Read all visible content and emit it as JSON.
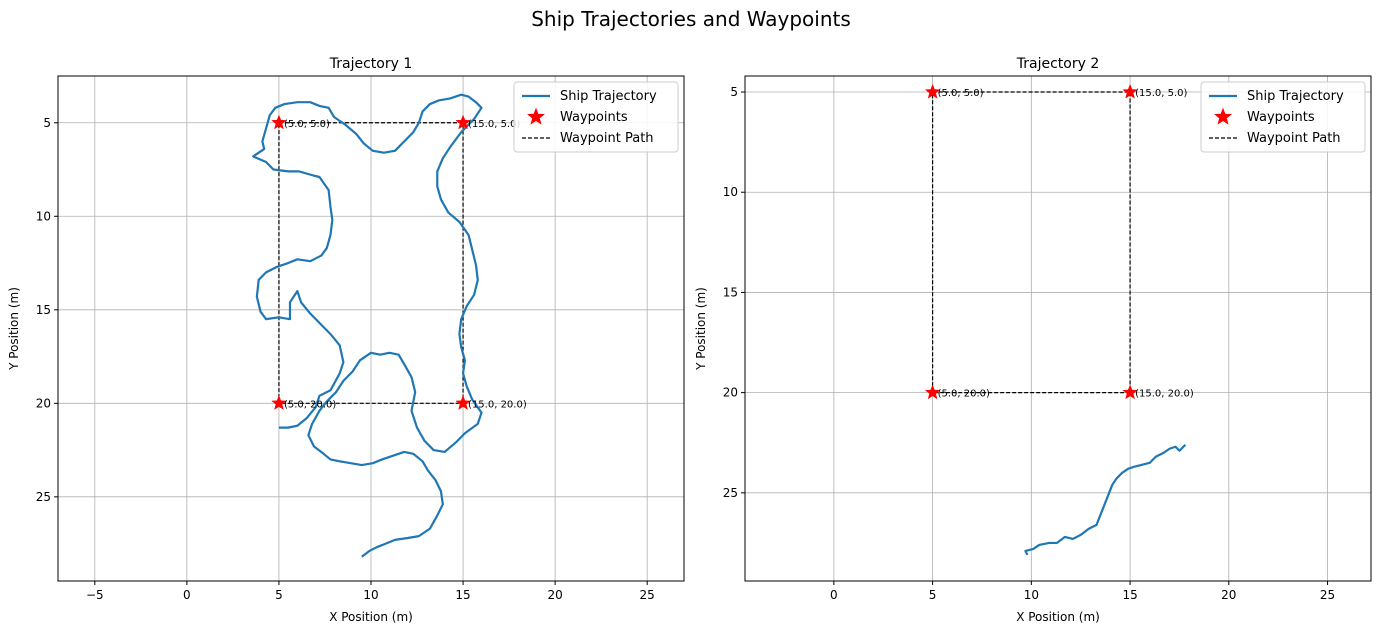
{
  "figure": {
    "suptitle": "Ship Trajectories and Waypoints"
  },
  "chart_data": [
    {
      "type": "line",
      "title": "Trajectory 1",
      "xlabel": "X Position (m)",
      "ylabel": "Y Position (m)",
      "xlim": [
        -7,
        27
      ],
      "ylim": [
        29.5,
        2.5
      ],
      "y_inverted": true,
      "xticks": [
        -5,
        0,
        5,
        10,
        15,
        20,
        25
      ],
      "yticks": [
        5,
        10,
        15,
        20,
        25
      ],
      "grid": true,
      "legend_position": "top-right",
      "legend": [
        "Ship Trajectory",
        "Waypoints",
        "Waypoint Path"
      ],
      "colors": {
        "trajectory": "#1f77b4",
        "waypoint": "#ff0000",
        "path": "#000000"
      },
      "waypoints": [
        {
          "x": 5,
          "y": 5,
          "label": "(5.0, 5.0)"
        },
        {
          "x": 15,
          "y": 5,
          "label": "(15.0, 5.0)"
        },
        {
          "x": 15,
          "y": 20,
          "label": "(15.0, 20.0)"
        },
        {
          "x": 5,
          "y": 20,
          "label": "(5.0, 20.0)"
        }
      ],
      "waypoint_path": [
        [
          5,
          5
        ],
        [
          15,
          5
        ],
        [
          15,
          20
        ],
        [
          5,
          20
        ],
        [
          5,
          5
        ]
      ],
      "trajectory": [
        [
          5.0,
          21.3
        ],
        [
          5.5,
          21.3
        ],
        [
          6.0,
          21.2
        ],
        [
          6.5,
          20.8
        ],
        [
          7.0,
          20.2
        ],
        [
          7.2,
          19.6
        ],
        [
          7.8,
          19.3
        ],
        [
          8.3,
          18.4
        ],
        [
          8.5,
          17.8
        ],
        [
          8.3,
          16.9
        ],
        [
          7.8,
          16.3
        ],
        [
          7.2,
          15.7
        ],
        [
          6.7,
          15.2
        ],
        [
          6.2,
          14.6
        ],
        [
          6.0,
          14.0
        ],
        [
          5.6,
          14.6
        ],
        [
          5.6,
          15.5
        ],
        [
          5.0,
          15.4
        ],
        [
          4.3,
          15.5
        ],
        [
          4.0,
          15.1
        ],
        [
          3.8,
          14.3
        ],
        [
          3.9,
          13.4
        ],
        [
          4.3,
          13.0
        ],
        [
          4.9,
          12.7
        ],
        [
          5.5,
          12.5
        ],
        [
          6.0,
          12.3
        ],
        [
          6.7,
          12.4
        ],
        [
          7.3,
          12.1
        ],
        [
          7.6,
          11.7
        ],
        [
          7.8,
          11.0
        ],
        [
          7.9,
          10.2
        ],
        [
          7.8,
          9.5
        ],
        [
          7.7,
          8.6
        ],
        [
          7.2,
          7.9
        ],
        [
          6.8,
          7.8
        ],
        [
          6.1,
          7.6
        ],
        [
          5.5,
          7.6
        ],
        [
          4.7,
          7.5
        ],
        [
          4.3,
          7.1
        ],
        [
          3.6,
          6.8
        ],
        [
          4.2,
          6.4
        ],
        [
          4.1,
          6.0
        ],
        [
          4.3,
          5.3
        ],
        [
          4.5,
          4.6
        ],
        [
          4.8,
          4.2
        ],
        [
          5.3,
          4.0
        ],
        [
          6.0,
          3.9
        ],
        [
          6.7,
          3.9
        ],
        [
          7.2,
          4.1
        ],
        [
          7.7,
          4.2
        ],
        [
          8.0,
          4.7
        ],
        [
          8.6,
          5.1
        ],
        [
          9.2,
          5.6
        ],
        [
          9.6,
          6.1
        ],
        [
          10.1,
          6.5
        ],
        [
          10.7,
          6.6
        ],
        [
          11.3,
          6.5
        ],
        [
          11.8,
          6.0
        ],
        [
          12.3,
          5.5
        ],
        [
          12.6,
          5.0
        ],
        [
          12.8,
          4.4
        ],
        [
          13.2,
          4.0
        ],
        [
          13.7,
          3.8
        ],
        [
          14.3,
          3.7
        ],
        [
          14.9,
          3.5
        ],
        [
          15.3,
          3.6
        ],
        [
          15.7,
          3.9
        ],
        [
          16.0,
          4.2
        ],
        [
          15.6,
          4.8
        ],
        [
          14.9,
          5.5
        ],
        [
          14.3,
          6.3
        ],
        [
          13.9,
          6.9
        ],
        [
          13.6,
          7.6
        ],
        [
          13.6,
          8.4
        ],
        [
          13.8,
          9.1
        ],
        [
          14.2,
          9.8
        ],
        [
          14.8,
          10.3
        ],
        [
          15.3,
          11.0
        ],
        [
          15.5,
          11.8
        ],
        [
          15.7,
          12.6
        ],
        [
          15.8,
          13.4
        ],
        [
          15.6,
          14.2
        ],
        [
          15.2,
          14.8
        ],
        [
          14.9,
          15.5
        ],
        [
          14.8,
          16.3
        ],
        [
          14.9,
          17.0
        ],
        [
          15.1,
          17.7
        ],
        [
          15.0,
          18.4
        ],
        [
          15.2,
          19.1
        ],
        [
          15.5,
          19.8
        ],
        [
          16.0,
          20.5
        ],
        [
          15.8,
          21.1
        ],
        [
          15.1,
          21.6
        ],
        [
          14.6,
          22.1
        ],
        [
          14.0,
          22.6
        ],
        [
          13.4,
          22.5
        ],
        [
          12.9,
          22.0
        ],
        [
          12.5,
          21.3
        ],
        [
          12.2,
          20.4
        ],
        [
          12.4,
          19.4
        ],
        [
          12.2,
          18.6
        ],
        [
          11.8,
          17.9
        ],
        [
          11.5,
          17.4
        ],
        [
          11.0,
          17.3
        ],
        [
          10.5,
          17.4
        ],
        [
          10.0,
          17.3
        ],
        [
          9.4,
          17.7
        ],
        [
          9.0,
          18.3
        ],
        [
          8.5,
          18.8
        ],
        [
          8.1,
          19.4
        ],
        [
          7.6,
          19.9
        ],
        [
          7.2,
          20.4
        ],
        [
          6.8,
          21.1
        ],
        [
          6.6,
          21.7
        ],
        [
          6.9,
          22.3
        ],
        [
          7.3,
          22.6
        ],
        [
          7.8,
          23.0
        ],
        [
          8.3,
          23.1
        ],
        [
          8.9,
          23.2
        ],
        [
          9.5,
          23.3
        ],
        [
          10.1,
          23.2
        ],
        [
          10.6,
          23.0
        ],
        [
          11.2,
          22.8
        ],
        [
          11.8,
          22.6
        ],
        [
          12.3,
          22.7
        ],
        [
          12.8,
          23.1
        ],
        [
          13.1,
          23.6
        ],
        [
          13.5,
          24.1
        ],
        [
          13.8,
          24.7
        ],
        [
          13.9,
          25.4
        ],
        [
          13.6,
          26.0
        ],
        [
          13.2,
          26.7
        ],
        [
          12.6,
          27.1
        ],
        [
          12.0,
          27.2
        ],
        [
          11.3,
          27.3
        ],
        [
          10.8,
          27.5
        ],
        [
          10.3,
          27.7
        ],
        [
          9.9,
          27.9
        ],
        [
          9.5,
          28.2
        ]
      ]
    },
    {
      "type": "line",
      "title": "Trajectory 2",
      "xlabel": "X Position (m)",
      "ylabel": "Y Position (m)",
      "xlim": [
        -4.5,
        27.2
      ],
      "ylim": [
        29.4,
        4.2
      ],
      "y_inverted": true,
      "xticks": [
        0,
        5,
        10,
        15,
        20,
        25
      ],
      "yticks": [
        5,
        10,
        15,
        20,
        25
      ],
      "grid": true,
      "legend_position": "top-right",
      "legend": [
        "Ship Trajectory",
        "Waypoints",
        "Waypoint Path"
      ],
      "colors": {
        "trajectory": "#1f77b4",
        "waypoint": "#ff0000",
        "path": "#000000"
      },
      "waypoints": [
        {
          "x": 5,
          "y": 5,
          "label": "(5.0, 5.0)"
        },
        {
          "x": 15,
          "y": 5,
          "label": "(15.0, 5.0)"
        },
        {
          "x": 15,
          "y": 20,
          "label": "(15.0, 20.0)"
        },
        {
          "x": 5,
          "y": 20,
          "label": "(5.0, 20.0)"
        }
      ],
      "waypoint_path": [
        [
          5,
          5
        ],
        [
          15,
          5
        ],
        [
          15,
          20
        ],
        [
          5,
          20
        ],
        [
          5,
          5
        ]
      ],
      "trajectory": [
        [
          9.8,
          28.1
        ],
        [
          9.7,
          27.9
        ],
        [
          10.1,
          27.8
        ],
        [
          10.4,
          27.6
        ],
        [
          10.9,
          27.5
        ],
        [
          11.3,
          27.5
        ],
        [
          11.7,
          27.2
        ],
        [
          12.1,
          27.3
        ],
        [
          12.5,
          27.1
        ],
        [
          12.9,
          26.8
        ],
        [
          13.3,
          26.6
        ],
        [
          13.5,
          26.1
        ],
        [
          13.7,
          25.6
        ],
        [
          13.9,
          25.1
        ],
        [
          14.1,
          24.6
        ],
        [
          14.3,
          24.3
        ],
        [
          14.6,
          24.0
        ],
        [
          14.9,
          23.8
        ],
        [
          15.2,
          23.7
        ],
        [
          15.6,
          23.6
        ],
        [
          16.0,
          23.5
        ],
        [
          16.3,
          23.2
        ],
        [
          16.7,
          23.0
        ],
        [
          17.0,
          22.8
        ],
        [
          17.3,
          22.7
        ],
        [
          17.5,
          22.9
        ],
        [
          17.8,
          22.6
        ]
      ]
    }
  ]
}
